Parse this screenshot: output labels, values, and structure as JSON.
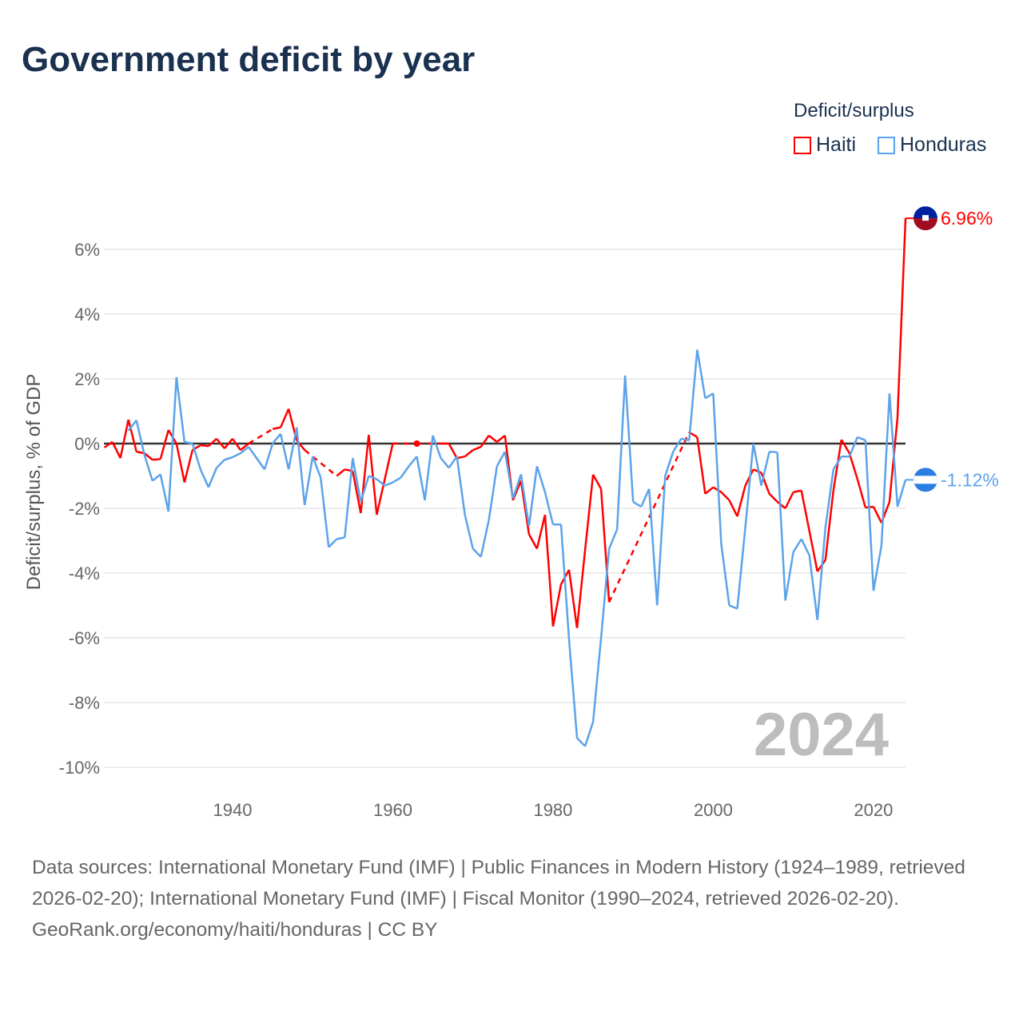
{
  "title": "Government deficit by year",
  "legend": {
    "title": "Deficit/surplus",
    "items": [
      {
        "name": "Haiti",
        "color": "#ff0000"
      },
      {
        "name": "Honduras",
        "color": "#5ba3ea"
      }
    ]
  },
  "footer": {
    "sources": "Data sources: International Monetary Fund (IMF) | Public Finances in Modern History (1924–1989, retrieved 2026-02-20); International Monetary Fund (IMF) | Fiscal Monitor (1990–2024, retrieved 2026-02-20).",
    "credit": "GeoRank.org/economy/haiti/honduras | CC BY"
  },
  "chart_data": {
    "type": "line",
    "title": "Government deficit by year",
    "ylabel": "Deficit/surplus, % of GDP",
    "xlabel": "",
    "xlim": [
      1924,
      2024
    ],
    "ylim": [
      -10,
      7
    ],
    "yticks": [
      -10,
      -8,
      -6,
      -4,
      -2,
      0,
      2,
      4,
      6
    ],
    "ytick_labels": [
      "-10%",
      "-8%",
      "-6%",
      "-4%",
      "-2%",
      "0%",
      "2%",
      "4%",
      "6%"
    ],
    "xticks": [
      1940,
      1960,
      1980,
      2000,
      2020
    ],
    "xtick_labels": [
      "1940",
      "1960",
      "1980",
      "2000",
      "2020"
    ],
    "year_label": "2024",
    "start_year": 1924,
    "series": [
      {
        "name": "Haiti",
        "color": "#ff0000",
        "end_label": "6.96%",
        "values": [
          -0.12,
          0.05,
          -0.45,
          0.74,
          -0.25,
          -0.3,
          -0.5,
          -0.48,
          0.42,
          0,
          -1.2,
          -0.2,
          -0.05,
          -0.08,
          0.15,
          -0.15,
          0.15,
          -0.2,
          0,
          null,
          null,
          0.45,
          0.5,
          1.07,
          0.1,
          -0.2,
          null,
          null,
          null,
          -1.0,
          -0.8,
          -0.85,
          -2.15,
          0.27,
          -2.2,
          -1.1,
          0,
          null,
          null,
          0,
          null,
          null,
          0,
          0,
          -0.45,
          -0.4,
          -0.2,
          -0.1,
          0.25,
          0.05,
          0.25,
          -1.75,
          -1.15,
          -2.8,
          -3.25,
          -2.2,
          -5.65,
          -4.35,
          -3.9,
          -5.7,
          -3.3,
          -0.96,
          -1.4,
          -4.9,
          null,
          null,
          null,
          null,
          null,
          null,
          null,
          null,
          null,
          0.35,
          0.2,
          -1.55,
          -1.35,
          -1.5,
          -1.75,
          -2.25,
          -1.3,
          -0.8,
          -0.9,
          -1.55,
          -1.8,
          -2.0,
          -1.5,
          -1.45,
          -2.7,
          -3.95,
          -3.6,
          -1.45,
          0.12,
          -0.3,
          -1.1,
          -1.98,
          -1.95,
          -2.45,
          -1.8,
          0.8,
          6.96
        ]
      },
      {
        "name": "Honduras",
        "color": "#5ba3ea",
        "end_label": "-1.12%",
        "values": [
          null,
          null,
          null,
          0.4,
          0.72,
          -0.35,
          -1.15,
          -0.95,
          -2.1,
          2.05,
          0.05,
          0.0,
          -0.8,
          -1.35,
          -0.75,
          -0.5,
          -0.42,
          -0.3,
          -0.1,
          -0.45,
          -0.8,
          0.0,
          0.3,
          -0.8,
          0.5,
          -1.9,
          -0.4,
          -1.05,
          -3.2,
          -2.95,
          -2.9,
          -0.45,
          -1.8,
          -1.0,
          -1.1,
          -1.3,
          -1.2,
          -1.05,
          -0.7,
          -0.4,
          -1.75,
          0.25,
          -0.45,
          -0.75,
          -0.4,
          -2.2,
          -3.25,
          -3.5,
          -2.35,
          -0.7,
          -0.25,
          -1.7,
          -0.95,
          -2.55,
          -0.7,
          -1.5,
          -2.5,
          -2.5,
          -6.05,
          -9.1,
          -9.35,
          -8.6,
          -6.0,
          -3.25,
          -2.65,
          2.1,
          -1.8,
          -1.95,
          -1.4,
          -5.0,
          -1.0,
          -0.25,
          0.15,
          0.1,
          2.9,
          1.4,
          1.55,
          -3.1,
          -5.0,
          -5.1,
          -2.6,
          0.0,
          -1.3,
          -0.25,
          -0.27,
          -4.85,
          -3.35,
          -2.95,
          -3.45,
          -5.45,
          -2.6,
          -0.8,
          -0.4,
          -0.4,
          0.2,
          0.1,
          -4.55,
          -3.15,
          1.55,
          -1.95,
          -1.12
        ]
      }
    ],
    "grid": true,
    "legend_placement": "top-right"
  }
}
